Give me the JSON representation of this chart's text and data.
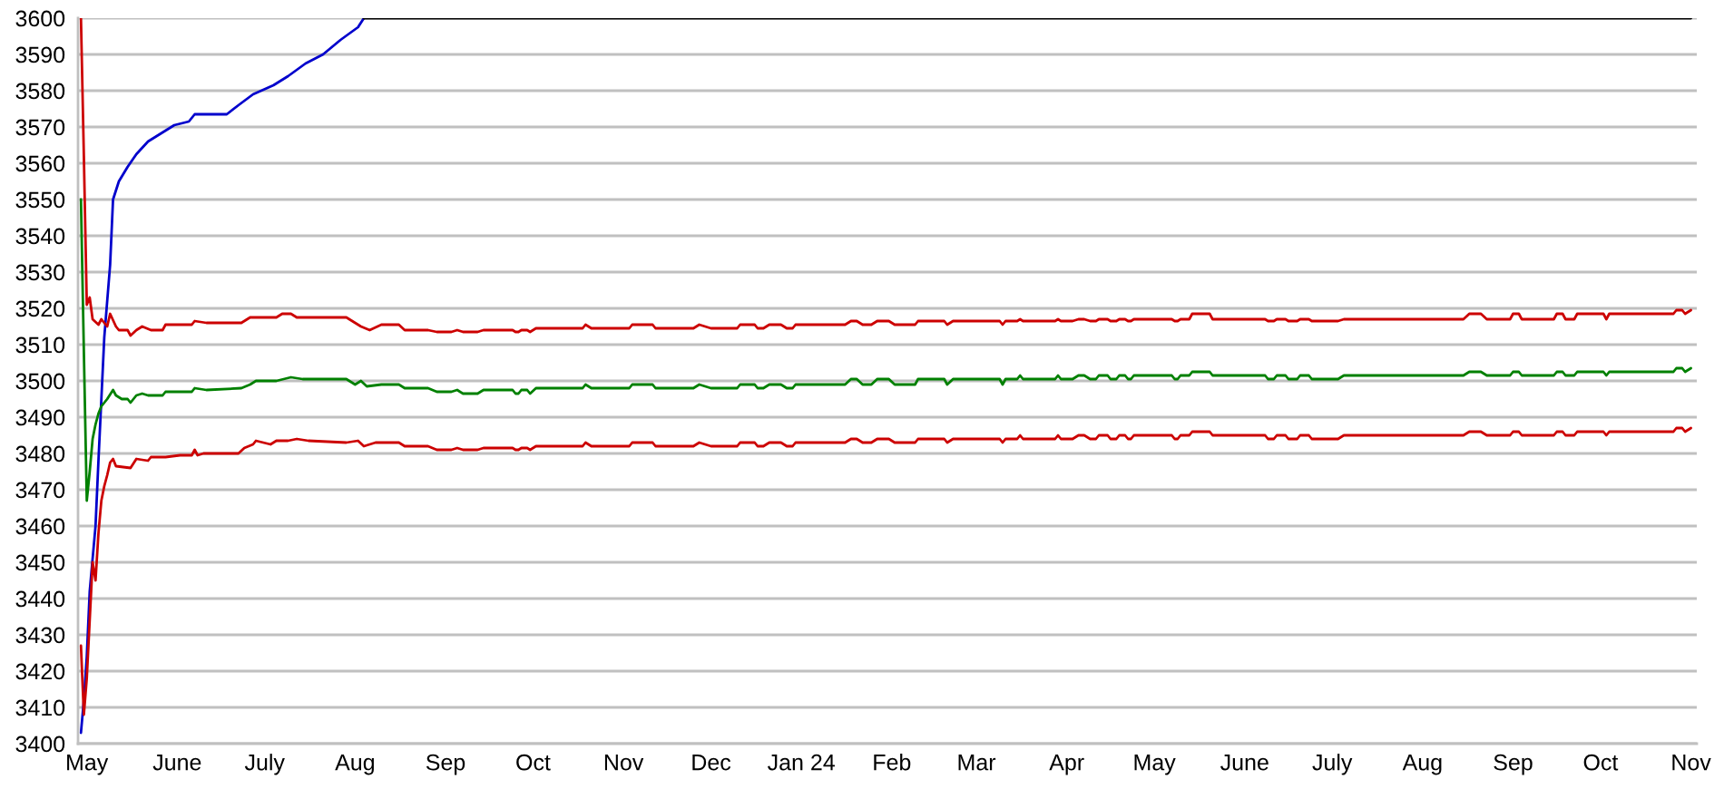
{
  "chart_data": {
    "type": "line",
    "grid": "y",
    "xlim": [
      "2023-04-28",
      "2024-11-03"
    ],
    "ylim": [
      3400,
      3600
    ],
    "yticks": [
      3400,
      3410,
      3420,
      3430,
      3440,
      3450,
      3460,
      3470,
      3480,
      3490,
      3500,
      3510,
      3520,
      3530,
      3540,
      3550,
      3560,
      3570,
      3580,
      3590,
      3600
    ],
    "xticks": [
      {
        "value": "2023-05-01",
        "label": "May"
      },
      {
        "value": "2023-06-01",
        "label": "June"
      },
      {
        "value": "2023-07-01",
        "label": "July"
      },
      {
        "value": "2023-08-01",
        "label": "Aug"
      },
      {
        "value": "2023-09-01",
        "label": "Sep"
      },
      {
        "value": "2023-10-01",
        "label": "Oct"
      },
      {
        "value": "2023-11-01",
        "label": "Nov"
      },
      {
        "value": "2023-12-01",
        "label": "Dec"
      },
      {
        "value": "2024-01-01",
        "label": "Jan 24"
      },
      {
        "value": "2024-02-01",
        "label": "Feb"
      },
      {
        "value": "2024-03-01",
        "label": "Mar"
      },
      {
        "value": "2024-04-01",
        "label": "Apr"
      },
      {
        "value": "2024-05-01",
        "label": "May"
      },
      {
        "value": "2024-06-01",
        "label": "June"
      },
      {
        "value": "2024-07-01",
        "label": "July"
      },
      {
        "value": "2024-08-01",
        "label": "Aug"
      },
      {
        "value": "2024-09-01",
        "label": "Sep"
      },
      {
        "value": "2024-10-01",
        "label": "Oct"
      },
      {
        "value": "2024-11-01",
        "label": "Nov"
      }
    ],
    "series": [
      {
        "color": "#0000cc",
        "x": [
          "2023-04-29",
          "2023-04-30",
          "2023-05-01",
          "2023-05-02",
          "2023-05-04",
          "2023-05-05",
          "2023-05-06",
          "2023-05-07",
          "2023-05-09",
          "2023-05-10",
          "2023-05-12",
          "2023-05-15",
          "2023-05-18",
          "2023-05-22",
          "2023-05-27",
          "2023-05-31",
          "2023-06-05",
          "2023-06-07",
          "2023-06-18",
          "2023-06-22",
          "2023-06-27",
          "2023-07-04",
          "2023-07-09",
          "2023-07-15",
          "2023-07-21",
          "2023-07-27",
          "2023-08-02",
          "2023-08-04"
        ],
        "values": [
          3403,
          3412,
          3424,
          3442,
          3460,
          3478,
          3495,
          3512,
          3532,
          3550,
          3555,
          3559,
          3562.5,
          3566,
          3568.5,
          3570.5,
          3571.5,
          3573.5,
          3573.5,
          3576,
          3579,
          3581.5,
          3584,
          3587.5,
          3590,
          3594,
          3597.5,
          3600
        ]
      },
      {
        "color": "#000000",
        "x": [
          "2023-08-04",
          "2024-11-01"
        ],
        "values": [
          3600,
          3600
        ]
      },
      {
        "color": "#cc0000",
        "x": [
          "2023-04-29",
          "2023-04-30",
          "2023-05-01",
          "2023-05-02",
          "2023-05-03",
          "2023-05-05",
          "2023-05-06",
          "2023-05-08",
          "2023-05-09",
          "2023-05-11",
          "2023-05-12",
          "2023-05-15",
          "2023-05-16",
          "2023-05-18",
          "2023-05-20",
          "2023-05-23",
          "2023-05-27",
          "2023-05-28",
          "2023-06-06",
          "2023-06-07",
          "2023-06-11",
          "2023-06-23",
          "2023-06-26",
          "2023-07-05",
          "2023-07-07",
          "2023-07-10",
          "2023-07-12",
          "2023-07-29",
          "2023-08-01",
          "2023-08-03",
          "2023-08-06",
          "2023-08-10",
          "2023-08-16",
          "2023-08-18",
          "2023-08-26",
          "2023-08-29",
          "2023-09-03",
          "2023-09-05",
          "2023-09-07",
          "2023-09-12",
          "2023-09-14",
          "2023-09-24",
          "2023-09-25",
          "2023-09-26",
          "2023-09-27",
          "2023-09-29",
          "2023-09-30",
          "2023-10-02",
          "2023-10-18",
          "2023-10-19",
          "2023-10-21",
          "2023-11-03",
          "2023-11-04",
          "2023-11-11",
          "2023-11-12",
          "2023-11-25",
          "2023-11-27",
          "2023-12-01",
          "2023-12-10",
          "2023-12-11",
          "2023-12-16",
          "2023-12-17",
          "2023-12-19",
          "2023-12-21",
          "2023-12-25",
          "2023-12-27",
          "2023-12-29",
          "2023-12-30",
          "2024-01-16",
          "2024-01-18",
          "2024-01-20",
          "2024-01-22",
          "2024-01-25",
          "2024-01-27",
          "2024-01-31",
          "2024-02-02",
          "2024-02-09",
          "2024-02-10",
          "2024-02-19",
          "2024-02-20",
          "2024-02-22",
          "2024-03-09",
          "2024-03-10",
          "2024-03-11",
          "2024-03-15",
          "2024-03-16",
          "2024-03-17",
          "2024-03-28",
          "2024-03-29",
          "2024-03-30",
          "2024-04-03",
          "2024-04-05",
          "2024-04-07",
          "2024-04-09",
          "2024-04-11",
          "2024-04-12",
          "2024-04-15",
          "2024-04-16",
          "2024-04-18",
          "2024-04-19",
          "2024-04-21",
          "2024-04-22",
          "2024-04-23",
          "2024-04-24",
          "2024-05-07",
          "2024-05-08",
          "2024-05-09",
          "2024-05-10",
          "2024-05-13",
          "2024-05-14",
          "2024-05-20",
          "2024-05-21",
          "2024-06-08",
          "2024-06-09",
          "2024-06-11",
          "2024-06-12",
          "2024-06-15",
          "2024-06-16",
          "2024-06-19",
          "2024-06-20",
          "2024-06-23",
          "2024-06-24",
          "2024-07-03",
          "2024-07-05",
          "2024-08-15",
          "2024-08-17",
          "2024-08-21",
          "2024-08-23",
          "2024-08-31",
          "2024-09-01",
          "2024-09-03",
          "2024-09-04",
          "2024-09-15",
          "2024-09-16",
          "2024-09-18",
          "2024-09-19",
          "2024-09-22",
          "2024-09-23",
          "2024-10-02",
          "2024-10-03",
          "2024-10-04",
          "2024-10-26",
          "2024-10-27",
          "2024-10-29",
          "2024-10-30",
          "2024-11-01"
        ],
        "values": [
          3600,
          3562,
          3521,
          3523,
          3517,
          3515.5,
          3517,
          3515,
          3518.5,
          3515,
          3514,
          3514,
          3512.5,
          3514,
          3515,
          3514,
          3514,
          3515.5,
          3515.5,
          3516.5,
          3516,
          3516,
          3517.5,
          3517.5,
          3518.5,
          3518.5,
          3517.5,
          3517.5,
          3516,
          3515,
          3514,
          3515.5,
          3515.5,
          3514,
          3514,
          3513.5,
          3513.5,
          3514,
          3513.5,
          3513.5,
          3514,
          3514,
          3513.5,
          3513.5,
          3514,
          3514,
          3513.5,
          3514.5,
          3514.5,
          3515.5,
          3514.5,
          3514.5,
          3515.5,
          3515.5,
          3514.5,
          3514.5,
          3515.5,
          3514.5,
          3514.5,
          3515.5,
          3515.5,
          3514.5,
          3514.5,
          3515.5,
          3515.5,
          3514.5,
          3514.5,
          3515.5,
          3515.5,
          3516.5,
          3516.5,
          3515.5,
          3515.5,
          3516.5,
          3516.5,
          3515.5,
          3515.5,
          3516.5,
          3516.5,
          3515.5,
          3516.5,
          3516.5,
          3515.5,
          3516.5,
          3516.5,
          3517,
          3516.5,
          3516.5,
          3517,
          3516.5,
          3516.5,
          3517,
          3517,
          3516.5,
          3516.5,
          3517,
          3517,
          3516.5,
          3516.5,
          3517,
          3517,
          3516.5,
          3516.5,
          3517,
          3517,
          3516.5,
          3516.5,
          3517,
          3517,
          3518.5,
          3518.5,
          3517,
          3517,
          3516.5,
          3516.5,
          3517,
          3517,
          3516.5,
          3516.5,
          3517,
          3517,
          3516.5,
          3516.5,
          3517,
          3517,
          3518.5,
          3518.5,
          3517,
          3517,
          3518.5,
          3518.5,
          3517,
          3517,
          3518.5,
          3518.5,
          3517,
          3517,
          3518.5,
          3518.5,
          3517,
          3518.5,
          3518.5,
          3519.5,
          3519.5,
          3518.5,
          3519.5
        ]
      },
      {
        "color": "#008000",
        "x": [
          "2023-04-29",
          "2023-04-30",
          "2023-05-01",
          "2023-05-02",
          "2023-05-03",
          "2023-05-04",
          "2023-05-05",
          "2023-05-06",
          "2023-05-08",
          "2023-05-10",
          "2023-05-11",
          "2023-05-13",
          "2023-05-15",
          "2023-05-16",
          "2023-05-18",
          "2023-05-20",
          "2023-05-22",
          "2023-05-27",
          "2023-05-28",
          "2023-06-06",
          "2023-06-07",
          "2023-06-11",
          "2023-06-23",
          "2023-06-26",
          "2023-06-28",
          "2023-07-05",
          "2023-07-10",
          "2023-07-14",
          "2023-07-29",
          "2023-08-01",
          "2023-08-03",
          "2023-08-05",
          "2023-08-10",
          "2023-08-16",
          "2023-08-18",
          "2023-08-26",
          "2023-08-29",
          "2023-09-03",
          "2023-09-05",
          "2023-09-07",
          "2023-09-12",
          "2023-09-14",
          "2023-09-24",
          "2023-09-25",
          "2023-09-26",
          "2023-09-27",
          "2023-09-29",
          "2023-09-30",
          "2023-10-02",
          "2023-10-18",
          "2023-10-19",
          "2023-10-21",
          "2023-11-03",
          "2023-11-04",
          "2023-11-11",
          "2023-11-12",
          "2023-11-25",
          "2023-11-27",
          "2023-12-01",
          "2023-12-10",
          "2023-12-11",
          "2023-12-16",
          "2023-12-17",
          "2023-12-19",
          "2023-12-21",
          "2023-12-25",
          "2023-12-27",
          "2023-12-29",
          "2023-12-30",
          "2024-01-16",
          "2024-01-18",
          "2024-01-20",
          "2024-01-22",
          "2024-01-25",
          "2024-01-27",
          "2024-01-31",
          "2024-02-02",
          "2024-02-09",
          "2024-02-10",
          "2024-02-19",
          "2024-02-20",
          "2024-02-22",
          "2024-03-09",
          "2024-03-10",
          "2024-03-11",
          "2024-03-15",
          "2024-03-16",
          "2024-03-17",
          "2024-03-28",
          "2024-03-29",
          "2024-03-30",
          "2024-04-03",
          "2024-04-05",
          "2024-04-07",
          "2024-04-09",
          "2024-04-11",
          "2024-04-12",
          "2024-04-15",
          "2024-04-16",
          "2024-04-18",
          "2024-04-19",
          "2024-04-21",
          "2024-04-22",
          "2024-04-23",
          "2024-04-24",
          "2024-05-07",
          "2024-05-08",
          "2024-05-09",
          "2024-05-10",
          "2024-05-13",
          "2024-05-14",
          "2024-05-20",
          "2024-05-21",
          "2024-06-08",
          "2024-06-09",
          "2024-06-11",
          "2024-06-12",
          "2024-06-15",
          "2024-06-16",
          "2024-06-19",
          "2024-06-20",
          "2024-06-23",
          "2024-06-24",
          "2024-07-03",
          "2024-07-05",
          "2024-08-15",
          "2024-08-17",
          "2024-08-21",
          "2024-08-23",
          "2024-08-31",
          "2024-09-01",
          "2024-09-03",
          "2024-09-04",
          "2024-09-15",
          "2024-09-16",
          "2024-09-18",
          "2024-09-19",
          "2024-09-22",
          "2024-09-23",
          "2024-10-02",
          "2024-10-03",
          "2024-10-04",
          "2024-10-26",
          "2024-10-27",
          "2024-10-29",
          "2024-10-30",
          "2024-11-01"
        ],
        "values": [
          3550,
          3508,
          3467,
          3475,
          3484,
          3488,
          3491,
          3493,
          3495,
          3497.5,
          3496,
          3495,
          3495,
          3494,
          3496,
          3496.5,
          3496,
          3496,
          3497,
          3497,
          3498,
          3497.5,
          3498,
          3499,
          3500,
          3500,
          3501,
          3500.5,
          3500.5,
          3499,
          3500,
          3498.5,
          3499,
          3499,
          3498,
          3498,
          3497,
          3497,
          3497.5,
          3496.5,
          3496.5,
          3497.5,
          3497.5,
          3496.5,
          3496.5,
          3497.5,
          3497.5,
          3496.5,
          3498,
          3498,
          3499,
          3498,
          3498,
          3499,
          3499,
          3498,
          3498,
          3499,
          3498,
          3498,
          3499,
          3499,
          3498,
          3498,
          3499,
          3499,
          3498,
          3498,
          3499,
          3499,
          3500.5,
          3500.5,
          3499,
          3499,
          3500.5,
          3500.5,
          3499,
          3499,
          3500.5,
          3500.5,
          3499,
          3500.5,
          3500.5,
          3499,
          3500.5,
          3500.5,
          3501.5,
          3500.5,
          3500.5,
          3501.5,
          3500.5,
          3500.5,
          3501.5,
          3501.5,
          3500.5,
          3500.5,
          3501.5,
          3501.5,
          3500.5,
          3500.5,
          3501.5,
          3501.5,
          3500.5,
          3500.5,
          3501.5,
          3501.5,
          3500.5,
          3500.5,
          3501.5,
          3501.5,
          3502.5,
          3502.5,
          3501.5,
          3501.5,
          3500.5,
          3500.5,
          3501.5,
          3501.5,
          3500.5,
          3500.5,
          3501.5,
          3501.5,
          3500.5,
          3500.5,
          3501.5,
          3501.5,
          3502.5,
          3502.5,
          3501.5,
          3501.5,
          3502.5,
          3502.5,
          3501.5,
          3501.5,
          3502.5,
          3502.5,
          3501.5,
          3501.5,
          3502.5,
          3502.5,
          3501.5,
          3502.5,
          3502.5,
          3503.5,
          3503.5,
          3502.5,
          3503.5
        ]
      },
      {
        "color": "#cc0000",
        "x": [
          "2023-04-29",
          "2023-04-30",
          "2023-05-01",
          "2023-05-02",
          "2023-05-03",
          "2023-05-04",
          "2023-05-05",
          "2023-05-06",
          "2023-05-07",
          "2023-05-08",
          "2023-05-09",
          "2023-05-10",
          "2023-05-11",
          "2023-05-16",
          "2023-05-18",
          "2023-05-22",
          "2023-05-23",
          "2023-05-28",
          "2023-06-02",
          "2023-06-06",
          "2023-06-07",
          "2023-06-08",
          "2023-06-10",
          "2023-06-22",
          "2023-06-24",
          "2023-06-27",
          "2023-06-28",
          "2023-07-03",
          "2023-07-05",
          "2023-07-09",
          "2023-07-12",
          "2023-07-16",
          "2023-07-29",
          "2023-08-02",
          "2023-08-04",
          "2023-08-08",
          "2023-08-16",
          "2023-08-18",
          "2023-08-26",
          "2023-08-29",
          "2023-09-03",
          "2023-09-05",
          "2023-09-07",
          "2023-09-12",
          "2023-09-14",
          "2023-09-24",
          "2023-09-25",
          "2023-09-26",
          "2023-09-27",
          "2023-09-29",
          "2023-09-30",
          "2023-10-02",
          "2023-10-18",
          "2023-10-19",
          "2023-10-21",
          "2023-11-03",
          "2023-11-04",
          "2023-11-11",
          "2023-11-12",
          "2023-11-25",
          "2023-11-27",
          "2023-12-01",
          "2023-12-10",
          "2023-12-11",
          "2023-12-16",
          "2023-12-17",
          "2023-12-19",
          "2023-12-21",
          "2023-12-25",
          "2023-12-27",
          "2023-12-29",
          "2023-12-30",
          "2024-01-16",
          "2024-01-18",
          "2024-01-20",
          "2024-01-22",
          "2024-01-25",
          "2024-01-27",
          "2024-01-31",
          "2024-02-02",
          "2024-02-09",
          "2024-02-10",
          "2024-02-19",
          "2024-02-20",
          "2024-02-22",
          "2024-03-09",
          "2024-03-10",
          "2024-03-11",
          "2024-03-15",
          "2024-03-16",
          "2024-03-17",
          "2024-03-28",
          "2024-03-29",
          "2024-03-30",
          "2024-04-03",
          "2024-04-05",
          "2024-04-07",
          "2024-04-09",
          "2024-04-11",
          "2024-04-12",
          "2024-04-15",
          "2024-04-16",
          "2024-04-18",
          "2024-04-19",
          "2024-04-21",
          "2024-04-22",
          "2024-04-23",
          "2024-04-24",
          "2024-05-07",
          "2024-05-08",
          "2024-05-09",
          "2024-05-10",
          "2024-05-13",
          "2024-05-14",
          "2024-05-20",
          "2024-05-21",
          "2024-06-08",
          "2024-06-09",
          "2024-06-11",
          "2024-06-12",
          "2024-06-15",
          "2024-06-16",
          "2024-06-19",
          "2024-06-20",
          "2024-06-23",
          "2024-06-24",
          "2024-07-03",
          "2024-07-05",
          "2024-08-15",
          "2024-08-17",
          "2024-08-21",
          "2024-08-23",
          "2024-08-31",
          "2024-09-01",
          "2024-09-03",
          "2024-09-04",
          "2024-09-15",
          "2024-09-16",
          "2024-09-18",
          "2024-09-19",
          "2024-09-22",
          "2024-09-23",
          "2024-10-02",
          "2024-10-03",
          "2024-10-04",
          "2024-10-26",
          "2024-10-27",
          "2024-10-29",
          "2024-10-30",
          "2024-11-01"
        ],
        "values": [
          3427,
          3408,
          3418,
          3434,
          3450,
          3445,
          3458,
          3467,
          3471,
          3474,
          3477.5,
          3478.5,
          3476.5,
          3476,
          3478.5,
          3478,
          3479,
          3479,
          3479.5,
          3479.5,
          3481,
          3479.5,
          3480,
          3480,
          3481.5,
          3482.5,
          3483.5,
          3482.5,
          3483.5,
          3483.5,
          3484,
          3483.5,
          3483,
          3483.5,
          3482,
          3483,
          3483,
          3482,
          3482,
          3481,
          3481,
          3481.5,
          3481,
          3481,
          3481.5,
          3481.5,
          3481,
          3481,
          3481.5,
          3481.5,
          3481,
          3482,
          3482,
          3483,
          3482,
          3482,
          3483,
          3483,
          3482,
          3482,
          3483,
          3482,
          3482,
          3483,
          3483,
          3482,
          3482,
          3483,
          3483,
          3482,
          3482,
          3483,
          3483,
          3484,
          3484,
          3483,
          3483,
          3484,
          3484,
          3483,
          3483,
          3484,
          3484,
          3483,
          3484,
          3484,
          3483,
          3484,
          3484,
          3485,
          3484,
          3484,
          3485,
          3484,
          3484,
          3485,
          3485,
          3484,
          3484,
          3485,
          3485,
          3484,
          3484,
          3485,
          3485,
          3484,
          3484,
          3485,
          3485,
          3484,
          3484,
          3485,
          3485,
          3486,
          3486,
          3485,
          3485,
          3484,
          3484,
          3485,
          3485,
          3484,
          3484,
          3485,
          3485,
          3484,
          3484,
          3485,
          3485,
          3486,
          3486,
          3485,
          3485,
          3486,
          3486,
          3485,
          3485,
          3486,
          3486,
          3485,
          3485,
          3486,
          3486,
          3485,
          3486,
          3486,
          3487,
          3487,
          3486,
          3487
        ]
      }
    ]
  }
}
